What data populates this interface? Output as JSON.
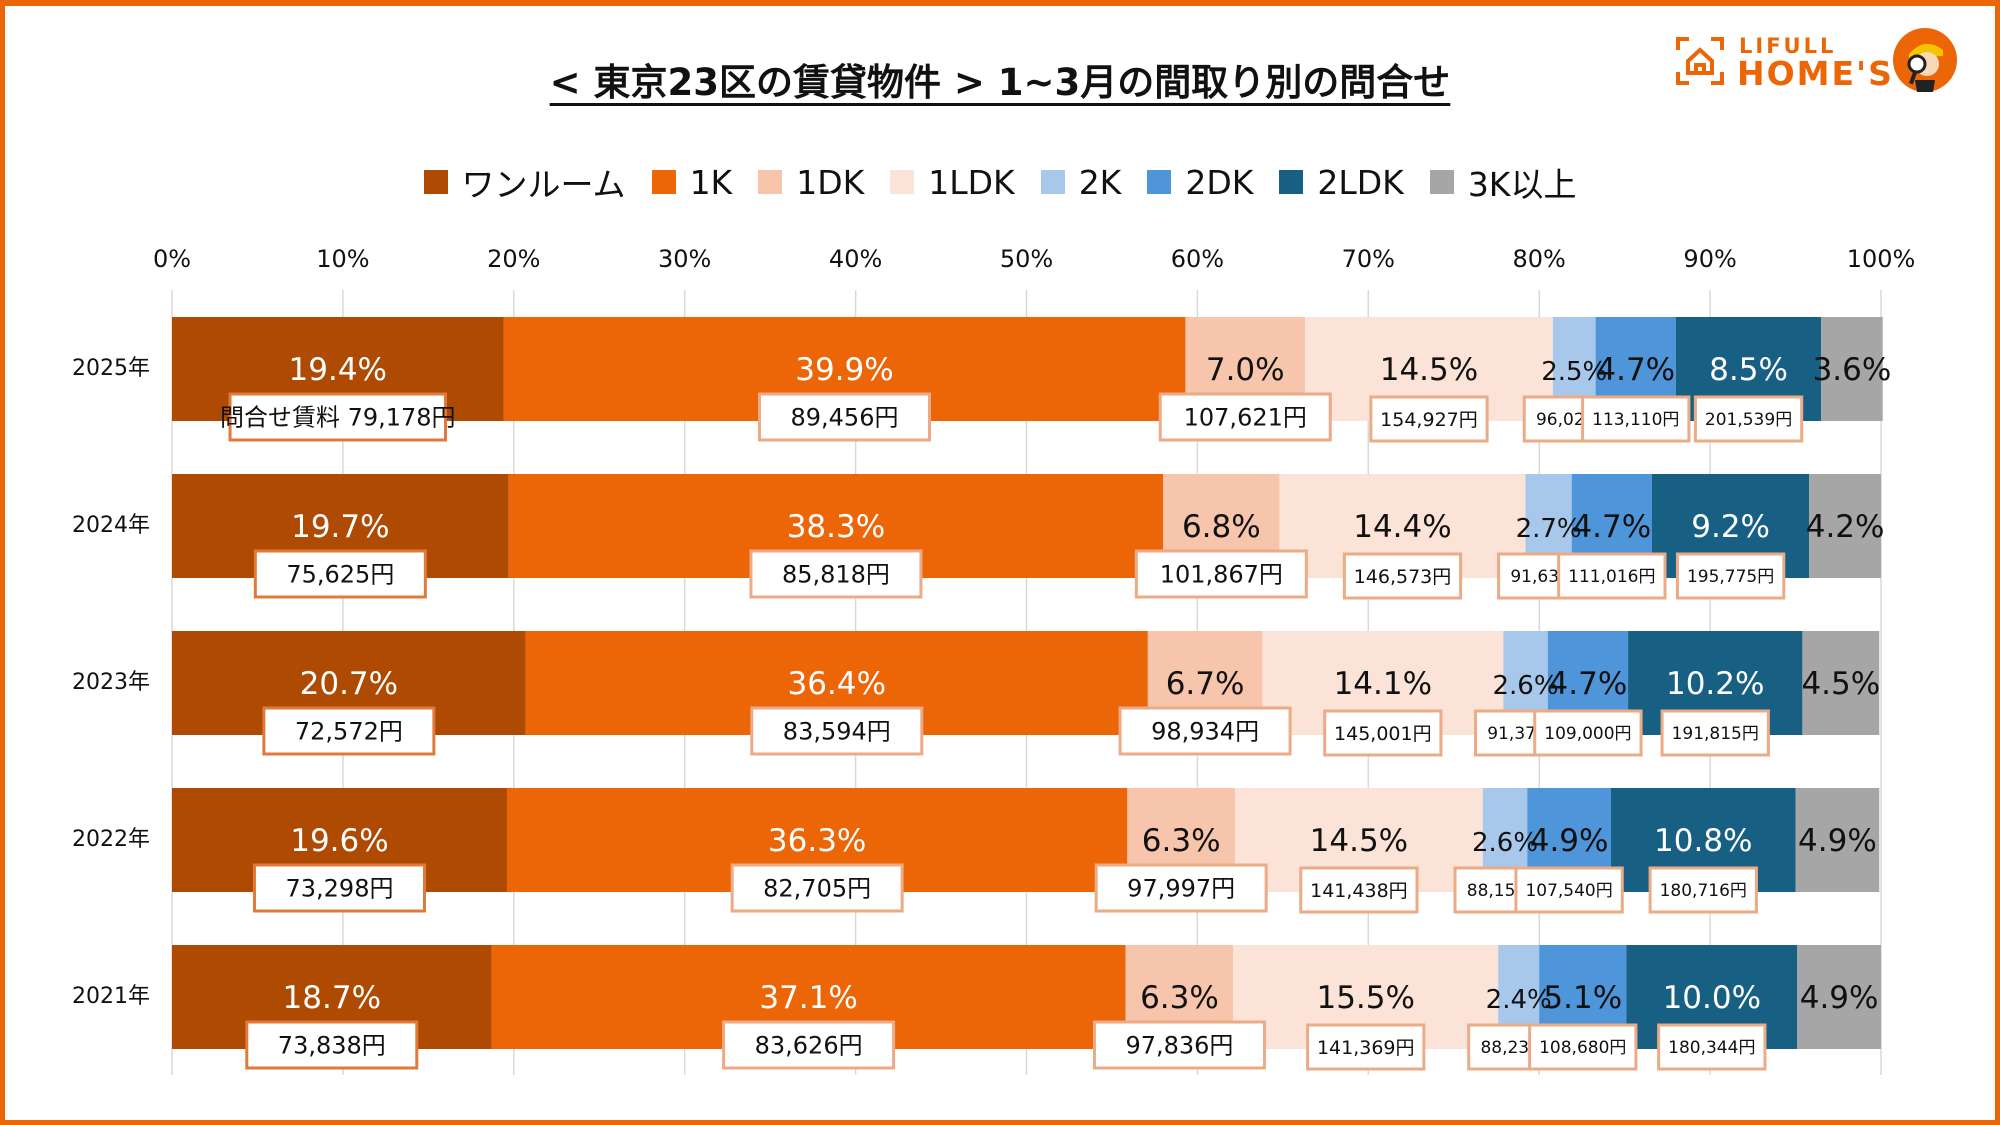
{
  "title": "< 東京23区の賃貸物件 > 1~3月の間取り別の問合せ",
  "logo": {
    "line1": "LIFULL",
    "line2": "HOME'S",
    "icon": "house-bracket-icon",
    "mascot": "mascot-magnifier-icon"
  },
  "chart_data": {
    "type": "bar",
    "orientation": "horizontal-stacked-100",
    "title": "< 東京23区の賃貸物件 > 1~3月の間取り別の問合せ",
    "xlabel": "",
    "ylabel": "",
    "xlim": [
      0,
      100
    ],
    "x_ticks": [
      "0%",
      "10%",
      "20%",
      "30%",
      "40%",
      "50%",
      "60%",
      "70%",
      "80%",
      "90%",
      "100%"
    ],
    "grid": true,
    "legend_position": "top",
    "categories": [
      "2025年",
      "2024年",
      "2023年",
      "2022年",
      "2021年"
    ],
    "rent_prefix_first": "問合せ賃料 ",
    "series": [
      {
        "name": "ワンルーム",
        "color": "#AE4A02",
        "label_color": "#FFFFFF",
        "values": [
          19.4,
          19.7,
          20.7,
          19.6,
          18.7
        ],
        "labels": [
          "19.4%",
          "19.7%",
          "20.7%",
          "19.6%",
          "18.7%"
        ],
        "rents": [
          "79,178円",
          "75,625円",
          "72,572円",
          "73,298円",
          "73,838円"
        ]
      },
      {
        "name": "1K",
        "color": "#EC6608",
        "label_color": "#FFFFFF",
        "values": [
          39.9,
          38.3,
          36.4,
          36.3,
          37.1
        ],
        "labels": [
          "39.9%",
          "38.3%",
          "36.4%",
          "36.3%",
          "37.1%"
        ],
        "rents": [
          "89,456円",
          "85,818円",
          "83,594円",
          "82,705円",
          "83,626円"
        ]
      },
      {
        "name": "1DK",
        "color": "#F6C5AC",
        "label_color": "#111111",
        "values": [
          7.0,
          6.8,
          6.7,
          6.3,
          6.3
        ],
        "labels": [
          "7.0%",
          "6.8%",
          "6.7%",
          "6.3%",
          "6.3%"
        ],
        "rents": [
          "107,621円",
          "101,867円",
          "98,934円",
          "97,997円",
          "97,836円"
        ]
      },
      {
        "name": "1LDK",
        "color": "#FBE3D7",
        "label_color": "#111111",
        "values": [
          14.5,
          14.4,
          14.1,
          14.5,
          15.5
        ],
        "labels": [
          "14.5%",
          "14.4%",
          "14.1%",
          "14.5%",
          "15.5%"
        ],
        "rents": [
          "154,927円",
          "146,573円",
          "145,001円",
          "141,438円",
          "141,369円"
        ]
      },
      {
        "name": "2K",
        "color": "#A7C8EB",
        "label_color": "#111111",
        "values": [
          2.5,
          2.7,
          2.6,
          2.6,
          2.4
        ],
        "labels": [
          "2.5%",
          "2.7%",
          "2.6%",
          "2.6%",
          "2.4%"
        ],
        "rents": [
          "96,022円",
          "91,639円",
          "91,373円",
          "88,157円",
          "88,237円"
        ]
      },
      {
        "name": "2DK",
        "color": "#4E95D9",
        "label_color": "#111111",
        "values": [
          4.7,
          4.7,
          4.7,
          4.9,
          5.1
        ],
        "labels": [
          "4.7%",
          "4.7%",
          "4.7%",
          "4.9%",
          "5.1%"
        ],
        "rents": [
          "113,110円",
          "111,016円",
          "109,000円",
          "107,540円",
          "108,680円"
        ]
      },
      {
        "name": "2LDK",
        "color": "#185F84",
        "label_color": "#FFFFFF",
        "values": [
          8.5,
          9.2,
          10.2,
          10.8,
          10.0
        ],
        "labels": [
          "8.5%",
          "9.2%",
          "10.2%",
          "10.8%",
          "10.0%"
        ],
        "rents": [
          "201,539円",
          "195,775円",
          "191,815円",
          "180,716円",
          "180,344円"
        ]
      },
      {
        "name": "3K以上",
        "color": "#A6A6A6",
        "label_color": "#111111",
        "values": [
          3.6,
          4.2,
          4.5,
          4.9,
          4.9
        ],
        "labels": [
          "3.6%",
          "4.2%",
          "4.5%",
          "4.9%",
          "4.9%"
        ],
        "rents": []
      }
    ]
  }
}
